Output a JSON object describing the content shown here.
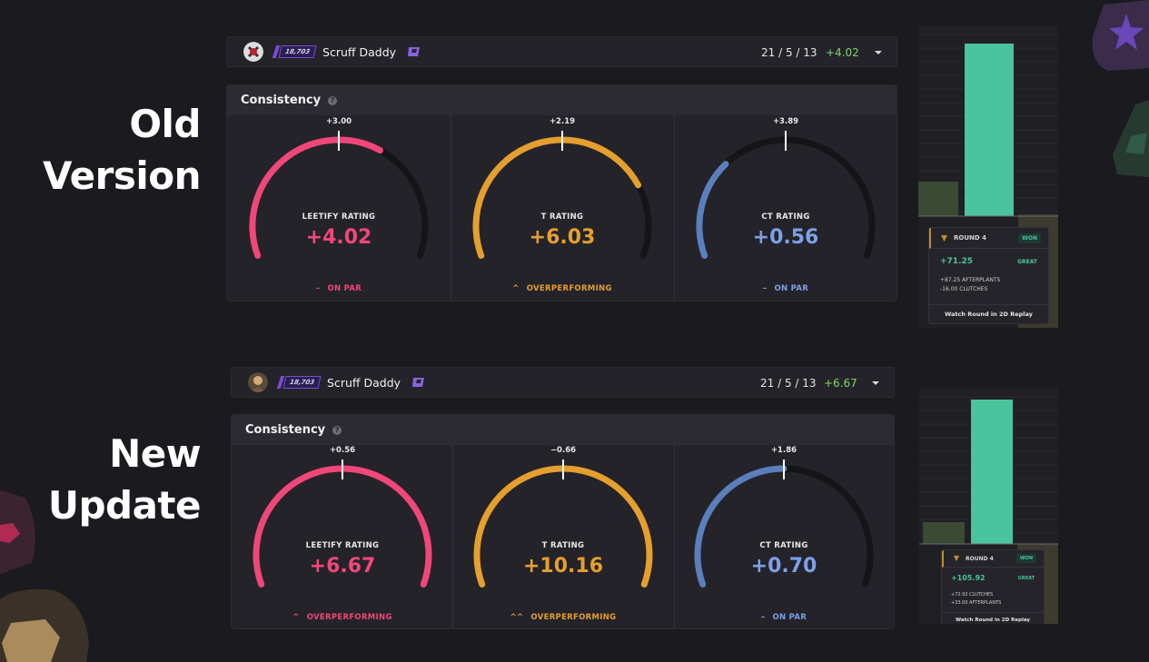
{
  "labels": {
    "old": [
      "Old",
      "Version"
    ],
    "new": [
      "New",
      "Update"
    ]
  },
  "colors": {
    "leetify": "#f0477a",
    "t": "#e59f2f",
    "ct": "#5b7fbd",
    "ct_text": "#7da0e6",
    "positive": "#7fd66b",
    "bar_green": "#4ac49c"
  },
  "old": {
    "player": {
      "name": "Scruff Daddy",
      "rank": "18,703",
      "kda": "21 / 5 / 13",
      "diff": "+4.02"
    },
    "consistency": {
      "title": "Consistency",
      "help_icon": "question-icon",
      "gauges": [
        {
          "label": "LEETIFY RATING",
          "value": "+4.02",
          "tick": "+3.00",
          "status": "ON PAR",
          "status_icon": "–",
          "fill": 0.63,
          "marker": 0.5
        },
        {
          "label": "T RATING",
          "value": "+6.03",
          "tick": "+2.19",
          "status": "OVERPERFORMING",
          "status_icon": "^",
          "fill": 0.78,
          "marker": 0.5
        },
        {
          "label": "CT RATING",
          "value": "+0.56",
          "tick": "+3.89",
          "status": "ON PAR",
          "status_icon": "–",
          "fill": 0.3,
          "marker": 0.5
        }
      ]
    },
    "round": {
      "title": "ROUND 4",
      "badge": "WON",
      "score": "+71.25",
      "grade": "GREAT",
      "lines": [
        "+87.25  AFTERPLANTS",
        "-16.00  CLUTCHES"
      ],
      "footer": "Watch Round in 2D Replay"
    }
  },
  "new": {
    "player": {
      "name": "Scruff Daddy",
      "rank": "18,703",
      "kda": "21 / 5 / 13",
      "diff": "+6.67"
    },
    "consistency": {
      "title": "Consistency",
      "help_icon": "question-icon",
      "gauges": [
        {
          "label": "LEETIFY RATING",
          "value": "+6.67",
          "tick": "+0.56",
          "status": "OVERPERFORMING",
          "status_icon": "^",
          "fill": 1.0,
          "marker": 0.5
        },
        {
          "label": "T RATING",
          "value": "+10.16",
          "tick": "−0.66",
          "status": "OVERPERFORMING",
          "status_icon": "^^",
          "fill": 1.0,
          "marker": 0.5
        },
        {
          "label": "CT RATING",
          "value": "+0.70",
          "tick": "+1.86",
          "status": "ON PAR",
          "status_icon": "–",
          "fill": 0.5,
          "marker": 0.5
        }
      ]
    },
    "round": {
      "title": "ROUND 4",
      "badge": "WON",
      "score": "+105.92",
      "grade": "GREAT",
      "lines": [
        "+72.92  CLUTCHES",
        "+33.00  AFTERPLANTS"
      ],
      "footer": "Watch Round in 2D Replay"
    }
  }
}
